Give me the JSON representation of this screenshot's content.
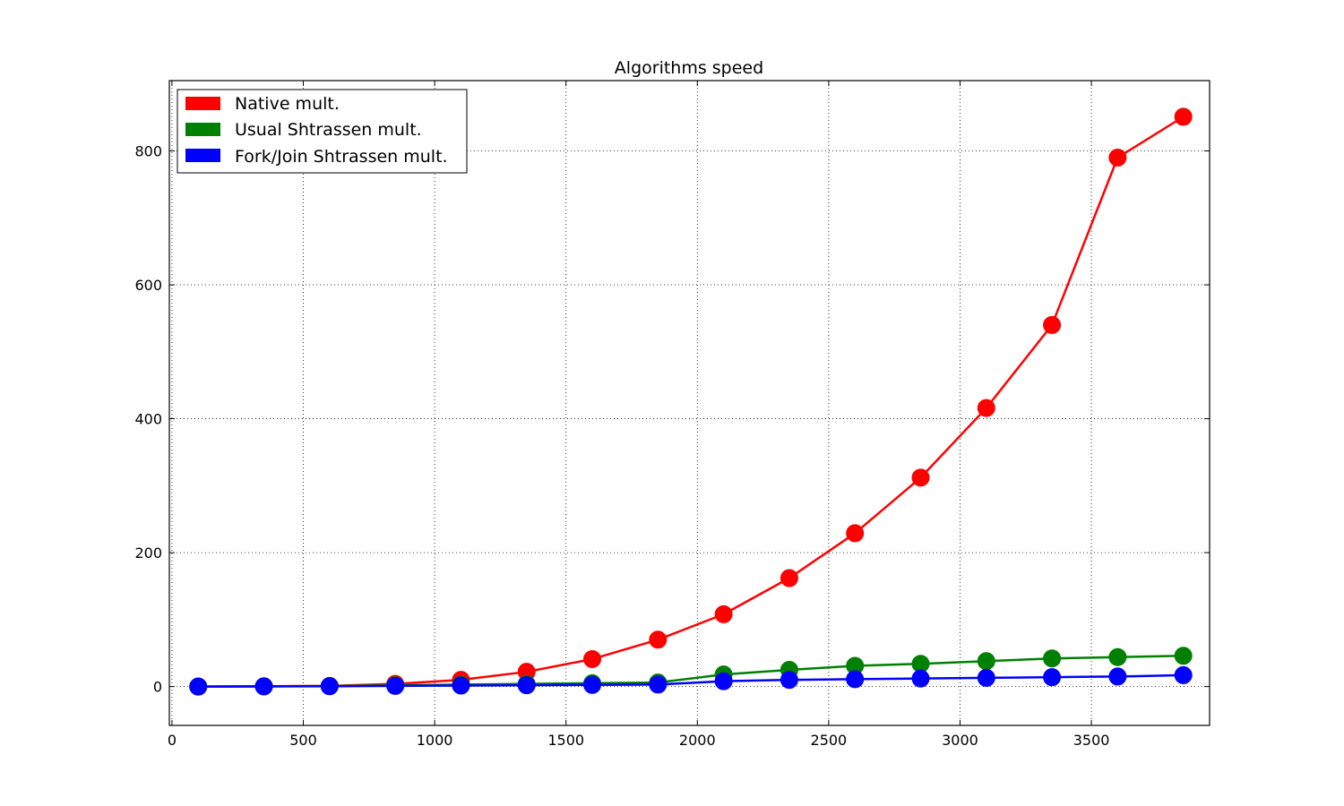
{
  "chart_data": {
    "type": "line",
    "title": "Algorithms speed",
    "xlabel": "",
    "ylabel": "",
    "xlim": [
      -10,
      3950
    ],
    "ylim": [
      -58,
      905
    ],
    "xticks": [
      0,
      500,
      1000,
      1500,
      2000,
      2500,
      3000,
      3500
    ],
    "xtick_labels": [
      "0",
      "500",
      "1000",
      "1500",
      "2000",
      "2500",
      "3000",
      "3500"
    ],
    "yticks": [
      0,
      200,
      400,
      600,
      800
    ],
    "ytick_labels": [
      "0",
      "200",
      "400",
      "600",
      "800"
    ],
    "grid": true,
    "legend_position": "top-left",
    "x": [
      100,
      350,
      600,
      850,
      1100,
      1350,
      1600,
      1850,
      2100,
      2350,
      2600,
      2850,
      3100,
      3350,
      3600,
      3850
    ],
    "series": [
      {
        "name": "Native mult.",
        "color": "#ff0000",
        "values": [
          0,
          0.5,
          1,
          4,
          10,
          22,
          41,
          70,
          108,
          162,
          229,
          312,
          416,
          540,
          790,
          851
        ]
      },
      {
        "name": "Usual Shtrassen mult.",
        "color": "#008000",
        "values": [
          0,
          0.3,
          0.8,
          2,
          3,
          4,
          5,
          6,
          18,
          25,
          31,
          34,
          38,
          42,
          44,
          46
        ]
      },
      {
        "name": "Fork/Join Shtrassen mult.",
        "color": "#0000ff",
        "values": [
          0,
          0.2,
          0.5,
          1,
          1.5,
          2,
          2.5,
          3,
          8,
          10,
          11,
          12,
          13,
          14,
          15,
          17
        ]
      }
    ]
  }
}
